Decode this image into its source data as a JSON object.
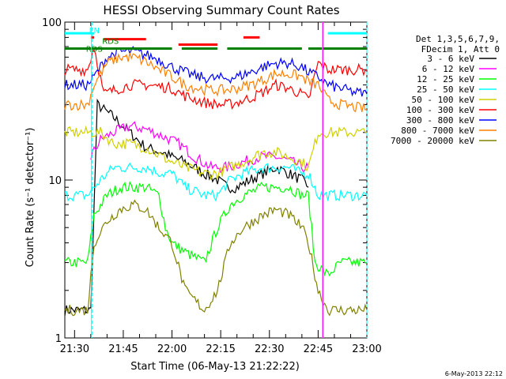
{
  "chart_data": {
    "type": "line",
    "title": "HESSI Observing Summary Count Rates",
    "xlabel": "Start Time (06-May-13 21:22:22)",
    "ylabel": "Count Rate (s⁻¹ detector⁻¹)",
    "y_scale": "log",
    "ylim": [
      1,
      100
    ],
    "xlim_minutes_after_2122": [
      5,
      98
    ],
    "y_ticks": [
      "1",
      "10",
      "100"
    ],
    "x_ticks": [
      {
        "label": "21:30",
        "minutes": 8
      },
      {
        "label": "21:45",
        "minutes": 23
      },
      {
        "label": "22:00",
        "minutes": 38
      },
      {
        "label": "22:15",
        "minutes": 53
      },
      {
        "label": "22:30",
        "minutes": 68
      },
      {
        "label": "22:45",
        "minutes": 83
      },
      {
        "label": "23:00",
        "minutes": 98
      }
    ],
    "legend": {
      "placement": "right",
      "header": [
        "Det 1,3,5,6,7,9,",
        "FDecim 1, Att 0"
      ]
    },
    "series": [
      {
        "name": "3 - 6 keV",
        "color": "#000000",
        "x": [
          5,
          13,
          15,
          20,
          25,
          30,
          35,
          38,
          42,
          48,
          52,
          55,
          58,
          62,
          66,
          70,
          74,
          78,
          80
        ],
        "y": [
          1.5,
          1.5,
          30,
          25,
          20,
          16,
          15,
          14,
          13,
          11,
          10,
          9,
          9,
          10,
          11,
          12,
          11,
          10,
          9
        ]
      },
      {
        "name": "6 - 12 keV",
        "color": "#ff00ff",
        "x": [
          13,
          16,
          20,
          25,
          30,
          35,
          40,
          45,
          50,
          55,
          60,
          65,
          70,
          75,
          78,
          80
        ],
        "y": [
          14,
          18,
          20,
          22,
          21,
          19,
          17,
          14,
          12,
          12,
          13,
          14,
          14,
          13,
          12,
          12
        ]
      },
      {
        "name": "12 - 25 keV",
        "color": "#00ff00",
        "x": [
          5,
          12,
          14,
          18,
          22,
          26,
          30,
          34,
          36,
          38,
          42,
          48,
          52,
          56,
          60,
          66,
          70,
          74,
          78,
          80,
          82,
          86,
          90,
          94,
          98
        ],
        "y": [
          3,
          3,
          6,
          8,
          9,
          9,
          9,
          8,
          5,
          4,
          3.5,
          3,
          5,
          7,
          8,
          9,
          9,
          9,
          8,
          8,
          3,
          2.5,
          3,
          3,
          3
        ]
      },
      {
        "name": "25 - 50 keV",
        "color": "#00ffff",
        "x": [
          5,
          12,
          16,
          20,
          25,
          30,
          35,
          38,
          42,
          48,
          52,
          56,
          60,
          66,
          70,
          74,
          78,
          80,
          83,
          86,
          90,
          94,
          98
        ],
        "y": [
          8,
          8,
          10,
          12,
          12,
          12,
          11,
          11,
          9,
          8,
          8,
          10,
          11,
          12,
          12,
          12,
          11,
          11,
          8,
          8,
          8,
          8,
          8
        ],
        "top_segments": [
          [
            5,
            14,
            85
          ],
          [
            86,
            98,
            85
          ]
        ]
      },
      {
        "name": "50 - 100 keV",
        "color": "#d0d000",
        "x": [
          5,
          12,
          16,
          20,
          25,
          30,
          35,
          38,
          42,
          48,
          52,
          56,
          60,
          66,
          70,
          74,
          78,
          80,
          83,
          86,
          90,
          94,
          98
        ],
        "y": [
          20,
          20,
          20,
          17,
          17,
          16,
          14,
          13,
          12,
          11,
          11,
          12,
          13,
          15,
          15,
          14,
          13,
          12,
          20,
          20,
          20,
          20,
          20
        ]
      },
      {
        "name": "100 - 300 keV",
        "color": "#ff0000",
        "x": [
          5,
          12,
          14,
          17,
          20,
          25,
          30,
          35,
          38,
          42,
          48,
          52,
          55,
          58,
          62,
          66,
          70,
          74,
          78,
          80,
          83,
          86,
          90,
          94,
          98
        ],
        "y": [
          50,
          50,
          70,
          35,
          37,
          40,
          40,
          39,
          38,
          34,
          31,
          30,
          30,
          31,
          33,
          36,
          40,
          38,
          35,
          32,
          55,
          50,
          50,
          50,
          50
        ],
        "top_segments": [
          [
            13,
            14,
            80
          ],
          [
            17,
            30,
            78
          ],
          [
            40,
            52,
            72
          ],
          [
            60,
            65,
            80
          ]
        ]
      },
      {
        "name": "300 - 800 keV",
        "color": "#0000ff",
        "x": [
          5,
          12,
          14,
          18,
          22,
          26,
          30,
          34,
          38,
          42,
          46,
          50,
          54,
          58,
          62,
          66,
          70,
          74,
          78,
          80,
          83,
          86,
          90,
          94,
          98
        ],
        "y": [
          40,
          40,
          45,
          60,
          65,
          65,
          62,
          58,
          52,
          48,
          45,
          44,
          44,
          45,
          48,
          52,
          55,
          55,
          52,
          48,
          45,
          40,
          38,
          36,
          35
        ]
      },
      {
        "name": "800 - 7000 keV",
        "color": "#ff8000",
        "x": [
          5,
          12,
          14,
          18,
          22,
          26,
          30,
          34,
          38,
          42,
          46,
          50,
          54,
          58,
          62,
          66,
          70,
          74,
          78,
          80,
          83,
          86,
          90,
          94,
          98
        ],
        "y": [
          30,
          30,
          40,
          55,
          60,
          60,
          56,
          50,
          45,
          40,
          38,
          37,
          37,
          38,
          40,
          43,
          47,
          47,
          45,
          42,
          40,
          32,
          30,
          29,
          28
        ]
      },
      {
        "name": "7000 - 20000 keV",
        "color": "#808000",
        "x": [
          5,
          12,
          14,
          18,
          22,
          26,
          30,
          34,
          38,
          42,
          48,
          52,
          56,
          60,
          66,
          70,
          74,
          78,
          80,
          83,
          86,
          90,
          94,
          98
        ],
        "y": [
          1.5,
          1.5,
          4,
          5.5,
          6.5,
          7,
          6.5,
          5,
          4,
          2,
          1.5,
          2,
          4,
          5,
          6,
          6.5,
          6,
          5,
          4,
          2,
          1.5,
          1.5,
          1.5,
          1.5
        ]
      }
    ],
    "flag_segments": [
      {
        "color": "#008000",
        "y": 68,
        "segments": [
          [
            5,
            38
          ],
          [
            41,
            52
          ],
          [
            55,
            78
          ],
          [
            80,
            98
          ]
        ]
      }
    ],
    "annotations": [
      "FN",
      "RDS",
      "RDS"
    ],
    "vertical_markers": [
      {
        "x": 13.5,
        "color": "#00ffff",
        "style": "dashed"
      },
      {
        "x": 98,
        "color": "#00ffff",
        "style": "dashed"
      },
      {
        "x": 13.2,
        "color": "#00ffff",
        "style": "solid"
      },
      {
        "x": 84.3,
        "color": "#00ffff",
        "style": "solid"
      },
      {
        "x": 84.5,
        "color": "#ff00ff",
        "style": "solid"
      }
    ],
    "timestamp": "6-May-2013 22:12"
  }
}
